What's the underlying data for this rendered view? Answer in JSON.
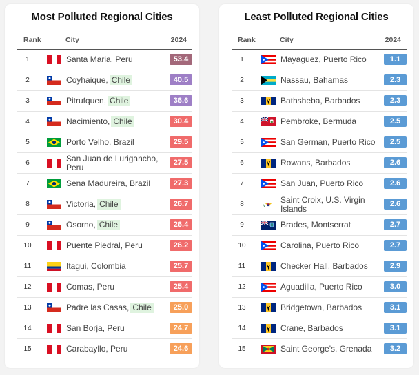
{
  "left": {
    "title": "Most Polluted Regional Cities",
    "headers": {
      "rank": "Rank",
      "city": "City",
      "year": "2024"
    },
    "rows": [
      {
        "rank": "1",
        "flag": "peru",
        "city": "Santa Maria, Peru",
        "value": "53.4",
        "color": "#a3687a"
      },
      {
        "rank": "2",
        "flag": "chile",
        "city": "Coyhaique,",
        "highlight": "Chile",
        "value": "40.5",
        "color": "#9e7fc6"
      },
      {
        "rank": "3",
        "flag": "chile",
        "city": "Pitrufquen,",
        "highlight": "Chile",
        "value": "36.6",
        "color": "#9e7fc6"
      },
      {
        "rank": "4",
        "flag": "chile",
        "city": "Nacimiento,",
        "highlight": "Chile",
        "value": "30.4",
        "color": "#f06b6b"
      },
      {
        "rank": "5",
        "flag": "brazil",
        "city": "Porto Velho, Brazil",
        "value": "29.5",
        "color": "#f06b6b"
      },
      {
        "rank": "6",
        "flag": "peru",
        "city": "San Juan de Lurigancho, Peru",
        "value": "27.5",
        "color": "#f06b6b"
      },
      {
        "rank": "7",
        "flag": "brazil",
        "city": "Sena Madureira, Brazil",
        "value": "27.3",
        "color": "#f06b6b"
      },
      {
        "rank": "8",
        "flag": "chile",
        "city": "Victoria,",
        "highlight": "Chile",
        "value": "26.7",
        "color": "#f06b6b"
      },
      {
        "rank": "9",
        "flag": "chile",
        "city": "Osorno,",
        "highlight": "Chile",
        "value": "26.4",
        "color": "#f06b6b"
      },
      {
        "rank": "10",
        "flag": "peru",
        "city": "Puente Piedral, Peru",
        "value": "26.2",
        "color": "#f06b6b"
      },
      {
        "rank": "11",
        "flag": "colombia",
        "city": "Itagui, Colombia",
        "value": "25.7",
        "color": "#f06b6b"
      },
      {
        "rank": "12",
        "flag": "peru",
        "city": "Comas, Peru",
        "value": "25.4",
        "color": "#f06b6b"
      },
      {
        "rank": "13",
        "flag": "chile",
        "city": "Padre las Casas,",
        "highlight": "Chile",
        "value": "25.0",
        "color": "#f7a05a"
      },
      {
        "rank": "14",
        "flag": "peru",
        "city": "San Borja, Peru",
        "value": "24.7",
        "color": "#f7a05a"
      },
      {
        "rank": "15",
        "flag": "peru",
        "city": "Carabayllo, Peru",
        "value": "24.6",
        "color": "#f7a05a"
      }
    ]
  },
  "right": {
    "title": "Least Polluted Regional Cities",
    "headers": {
      "rank": "Rank",
      "city": "City",
      "year": "2024"
    },
    "rows": [
      {
        "rank": "1",
        "flag": "puerto-rico",
        "city": "Mayaguez, Puerto Rico",
        "value": "1.1",
        "color": "#5b9bd5"
      },
      {
        "rank": "2",
        "flag": "bahamas",
        "city": "Nassau, Bahamas",
        "value": "2.3",
        "color": "#5b9bd5"
      },
      {
        "rank": "3",
        "flag": "barbados",
        "city": "Bathsheba, Barbados",
        "value": "2.3",
        "color": "#5b9bd5"
      },
      {
        "rank": "4",
        "flag": "bermuda",
        "city": "Pembroke, Bermuda",
        "value": "2.5",
        "color": "#5b9bd5"
      },
      {
        "rank": "5",
        "flag": "puerto-rico",
        "city": "San German, Puerto Rico",
        "value": "2.5",
        "color": "#5b9bd5"
      },
      {
        "rank": "6",
        "flag": "barbados",
        "city": "Rowans, Barbados",
        "value": "2.6",
        "color": "#5b9bd5"
      },
      {
        "rank": "7",
        "flag": "puerto-rico",
        "city": "San Juan, Puerto Rico",
        "value": "2.6",
        "color": "#5b9bd5"
      },
      {
        "rank": "8",
        "flag": "usvi",
        "city": "Saint Croix, U.S. Virgin Islands",
        "value": "2.6",
        "color": "#5b9bd5"
      },
      {
        "rank": "9",
        "flag": "montserrat",
        "city": "Brades, Montserrat",
        "value": "2.7",
        "color": "#5b9bd5"
      },
      {
        "rank": "10",
        "flag": "puerto-rico",
        "city": "Carolina, Puerto Rico",
        "value": "2.7",
        "color": "#5b9bd5"
      },
      {
        "rank": "11",
        "flag": "barbados",
        "city": "Checker Hall, Barbados",
        "value": "2.9",
        "color": "#5b9bd5"
      },
      {
        "rank": "12",
        "flag": "puerto-rico",
        "city": "Aguadilla, Puerto Rico",
        "value": "3.0",
        "color": "#5b9bd5"
      },
      {
        "rank": "13",
        "flag": "barbados",
        "city": "Bridgetown, Barbados",
        "value": "3.1",
        "color": "#5b9bd5"
      },
      {
        "rank": "14",
        "flag": "barbados",
        "city": "Crane, Barbados",
        "value": "3.1",
        "color": "#5b9bd5"
      },
      {
        "rank": "15",
        "flag": "grenada",
        "city": "Saint George's, Grenada",
        "value": "3.2",
        "color": "#5b9bd5"
      }
    ]
  }
}
